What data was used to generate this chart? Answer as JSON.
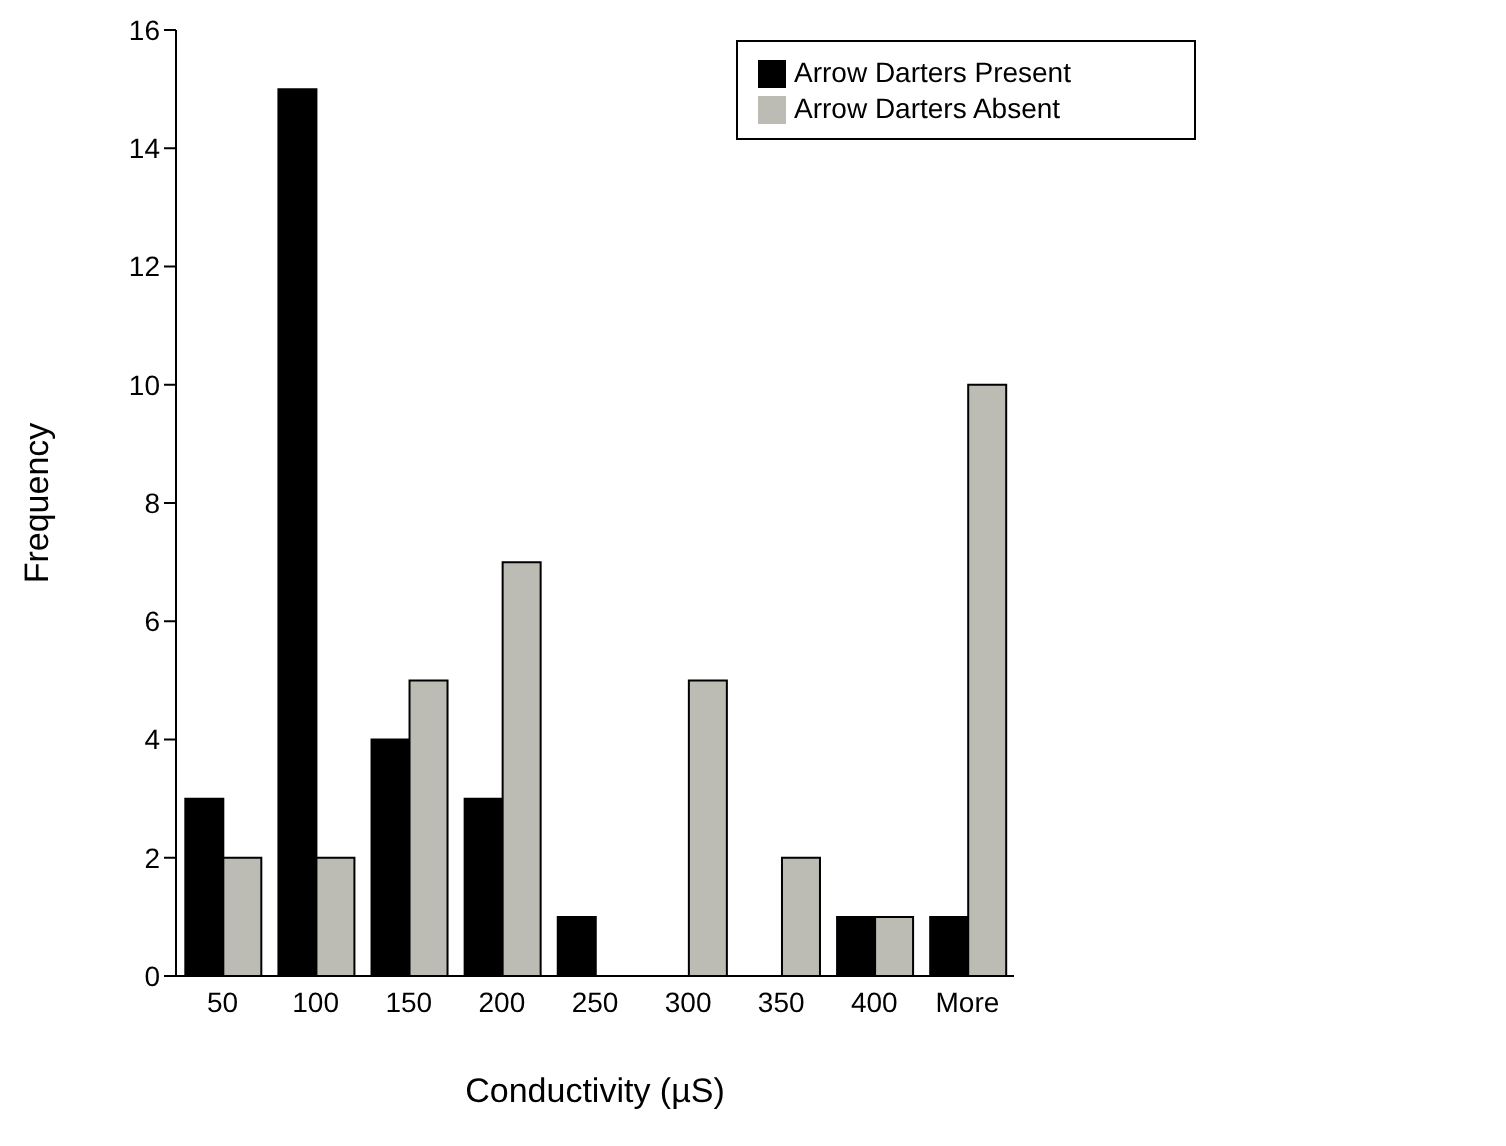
{
  "chart_data": {
    "type": "bar",
    "xlabel": "Conductivity (µS)",
    "ylabel": "Frequency",
    "categories": [
      "50",
      "100",
      "150",
      "200",
      "250",
      "300",
      "350",
      "400",
      "More"
    ],
    "series": [
      {
        "name": "Arrow Darters Present",
        "color": "#000000",
        "values": [
          3,
          15,
          4,
          3,
          1,
          0,
          0,
          1,
          1
        ]
      },
      {
        "name": "Arrow Darters Absent",
        "color": "#bcbcb4",
        "values": [
          2,
          2,
          5,
          7,
          0,
          5,
          2,
          1,
          10
        ]
      }
    ],
    "ylim": [
      0,
      16
    ],
    "yticks": [
      0,
      2,
      4,
      6,
      8,
      10,
      12,
      14,
      16
    ],
    "grid": false,
    "legend": "top right"
  }
}
